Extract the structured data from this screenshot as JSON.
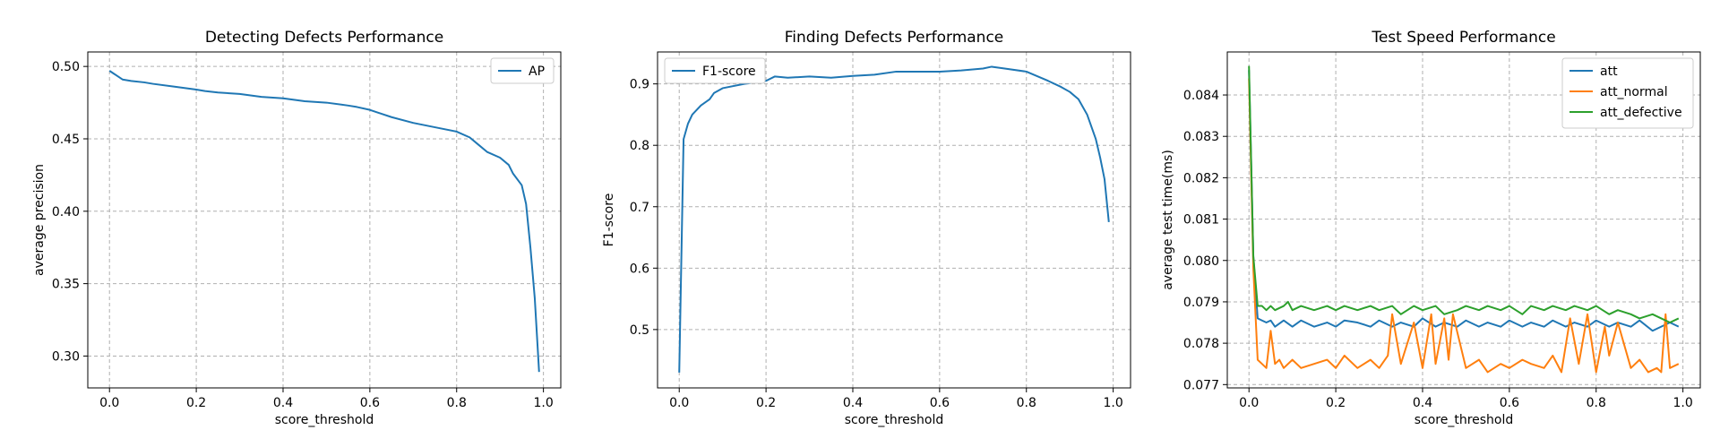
{
  "chart_data": [
    {
      "type": "line",
      "title": "Detecting Defects Performance",
      "xlabel": "score_threshold",
      "ylabel": "average precision",
      "xlim": [
        -0.05,
        1.04
      ],
      "ylim": [
        0.278,
        0.51
      ],
      "xticks": [
        0.0,
        0.2,
        0.4,
        0.6,
        0.8,
        1.0
      ],
      "xtick_labels": [
        "0.0",
        "0.2",
        "0.4",
        "0.6",
        "0.8",
        "1.0"
      ],
      "yticks": [
        0.3,
        0.35,
        0.4,
        0.45,
        0.5
      ],
      "ytick_labels": [
        "0.30",
        "0.35",
        "0.40",
        "0.45",
        "0.50"
      ],
      "grid": true,
      "legend": "top-right",
      "series": [
        {
          "name": "AP",
          "color": "#1f77b4",
          "x": [
            0.0,
            0.01,
            0.02,
            0.03,
            0.05,
            0.08,
            0.1,
            0.15,
            0.2,
            0.22,
            0.25,
            0.3,
            0.35,
            0.4,
            0.45,
            0.5,
            0.55,
            0.57,
            0.6,
            0.62,
            0.65,
            0.7,
            0.75,
            0.8,
            0.83,
            0.85,
            0.87,
            0.9,
            0.92,
            0.93,
            0.95,
            0.96,
            0.97,
            0.98,
            0.99
          ],
          "y": [
            0.497,
            0.495,
            0.493,
            0.491,
            0.49,
            0.489,
            0.488,
            0.486,
            0.484,
            0.483,
            0.482,
            0.481,
            0.479,
            0.478,
            0.476,
            0.475,
            0.473,
            0.472,
            0.47,
            0.468,
            0.465,
            0.461,
            0.458,
            0.455,
            0.451,
            0.446,
            0.441,
            0.437,
            0.432,
            0.426,
            0.418,
            0.405,
            0.375,
            0.34,
            0.289
          ]
        }
      ]
    },
    {
      "type": "line",
      "title": "Finding Defects Performance",
      "xlabel": "score_threshold",
      "ylabel": "F1-score",
      "xlim": [
        -0.05,
        1.04
      ],
      "ylim": [
        0.405,
        0.952
      ],
      "xticks": [
        0.0,
        0.2,
        0.4,
        0.6,
        0.8,
        1.0
      ],
      "xtick_labels": [
        "0.0",
        "0.2",
        "0.4",
        "0.6",
        "0.8",
        "1.0"
      ],
      "yticks": [
        0.5,
        0.6,
        0.7,
        0.8,
        0.9
      ],
      "ytick_labels": [
        "0.5",
        "0.6",
        "0.7",
        "0.8",
        "0.9"
      ],
      "grid": true,
      "legend": "top-left",
      "series": [
        {
          "name": "F1-score",
          "color": "#1f77b4",
          "x": [
            0.0,
            0.01,
            0.02,
            0.03,
            0.05,
            0.07,
            0.08,
            0.1,
            0.15,
            0.2,
            0.22,
            0.25,
            0.3,
            0.35,
            0.4,
            0.45,
            0.5,
            0.55,
            0.6,
            0.65,
            0.7,
            0.72,
            0.75,
            0.8,
            0.85,
            0.88,
            0.9,
            0.92,
            0.94,
            0.96,
            0.97,
            0.98,
            0.99
          ],
          "y": [
            0.43,
            0.81,
            0.835,
            0.85,
            0.865,
            0.875,
            0.885,
            0.893,
            0.9,
            0.905,
            0.912,
            0.91,
            0.912,
            0.91,
            0.913,
            0.915,
            0.92,
            0.92,
            0.92,
            0.922,
            0.925,
            0.928,
            0.925,
            0.92,
            0.905,
            0.895,
            0.887,
            0.875,
            0.85,
            0.81,
            0.78,
            0.745,
            0.675
          ]
        }
      ]
    },
    {
      "type": "line",
      "title": "Test Speed Performance",
      "xlabel": "score_threshold",
      "ylabel": "average test time(ms)",
      "xlim": [
        -0.05,
        1.04
      ],
      "ylim": [
        0.07692,
        0.08504
      ],
      "xticks": [
        0.0,
        0.2,
        0.4,
        0.6,
        0.8,
        1.0
      ],
      "xtick_labels": [
        "0.0",
        "0.2",
        "0.4",
        "0.6",
        "0.8",
        "1.0"
      ],
      "yticks": [
        0.077,
        0.078,
        0.079,
        0.08,
        0.081,
        0.082,
        0.083,
        0.084
      ],
      "ytick_labels": [
        "0.077",
        "0.078",
        "0.079",
        "0.080",
        "0.081",
        "0.082",
        "0.083",
        "0.084"
      ],
      "grid": true,
      "legend": "top-right",
      "series": [
        {
          "name": "att",
          "color": "#1f77b4",
          "x": [
            0.0,
            0.01,
            0.02,
            0.03,
            0.04,
            0.05,
            0.06,
            0.08,
            0.1,
            0.12,
            0.15,
            0.18,
            0.2,
            0.22,
            0.25,
            0.28,
            0.3,
            0.33,
            0.35,
            0.38,
            0.4,
            0.43,
            0.45,
            0.48,
            0.5,
            0.53,
            0.55,
            0.58,
            0.6,
            0.63,
            0.65,
            0.68,
            0.7,
            0.73,
            0.75,
            0.78,
            0.8,
            0.83,
            0.85,
            0.88,
            0.9,
            0.93,
            0.95,
            0.97,
            0.99
          ],
          "y": [
            0.0846,
            0.0801,
            0.0786,
            0.07855,
            0.0785,
            0.07855,
            0.0784,
            0.07855,
            0.0784,
            0.07855,
            0.0784,
            0.0785,
            0.0784,
            0.07855,
            0.0785,
            0.0784,
            0.07855,
            0.0784,
            0.0785,
            0.0784,
            0.0786,
            0.0784,
            0.0785,
            0.0784,
            0.07855,
            0.0784,
            0.0785,
            0.0784,
            0.07855,
            0.0784,
            0.0785,
            0.0784,
            0.07855,
            0.0784,
            0.0785,
            0.0784,
            0.07855,
            0.0784,
            0.0785,
            0.0784,
            0.07855,
            0.0783,
            0.0784,
            0.0785,
            0.0784
          ]
        },
        {
          "name": "att_normal",
          "color": "#ff7f0e",
          "x": [
            0.0,
            0.01,
            0.02,
            0.03,
            0.04,
            0.05,
            0.06,
            0.07,
            0.08,
            0.1,
            0.12,
            0.15,
            0.18,
            0.2,
            0.22,
            0.25,
            0.28,
            0.3,
            0.32,
            0.33,
            0.35,
            0.38,
            0.4,
            0.42,
            0.43,
            0.45,
            0.46,
            0.47,
            0.5,
            0.53,
            0.55,
            0.58,
            0.6,
            0.63,
            0.65,
            0.68,
            0.7,
            0.72,
            0.74,
            0.76,
            0.78,
            0.8,
            0.82,
            0.83,
            0.85,
            0.88,
            0.9,
            0.92,
            0.94,
            0.95,
            0.96,
            0.97,
            0.99
          ],
          "y": [
            0.0844,
            0.0798,
            0.0776,
            0.0775,
            0.0774,
            0.0783,
            0.0775,
            0.0776,
            0.0774,
            0.0776,
            0.0774,
            0.0775,
            0.0776,
            0.0774,
            0.0777,
            0.0774,
            0.0776,
            0.0774,
            0.0777,
            0.0787,
            0.0775,
            0.0785,
            0.0774,
            0.0787,
            0.0775,
            0.0786,
            0.0776,
            0.0787,
            0.0774,
            0.0776,
            0.0773,
            0.0775,
            0.0774,
            0.0776,
            0.0775,
            0.0774,
            0.0777,
            0.0773,
            0.0786,
            0.0775,
            0.0787,
            0.0773,
            0.0784,
            0.0777,
            0.0785,
            0.0774,
            0.0776,
            0.0773,
            0.0774,
            0.0773,
            0.0787,
            0.0774,
            0.0775
          ]
        },
        {
          "name": "att_defective",
          "color": "#2ca02c",
          "x": [
            0.0,
            0.01,
            0.02,
            0.03,
            0.04,
            0.05,
            0.06,
            0.08,
            0.09,
            0.1,
            0.12,
            0.15,
            0.18,
            0.2,
            0.22,
            0.25,
            0.28,
            0.3,
            0.33,
            0.35,
            0.38,
            0.4,
            0.43,
            0.45,
            0.48,
            0.5,
            0.53,
            0.55,
            0.58,
            0.6,
            0.63,
            0.65,
            0.68,
            0.7,
            0.73,
            0.75,
            0.78,
            0.8,
            0.83,
            0.85,
            0.88,
            0.9,
            0.93,
            0.95,
            0.97,
            0.99
          ],
          "y": [
            0.0847,
            0.0801,
            0.0789,
            0.0789,
            0.0788,
            0.0789,
            0.0788,
            0.0789,
            0.079,
            0.0788,
            0.0789,
            0.0788,
            0.0789,
            0.0788,
            0.0789,
            0.0788,
            0.0789,
            0.0788,
            0.0789,
            0.0787,
            0.0789,
            0.0788,
            0.0789,
            0.0787,
            0.0788,
            0.0789,
            0.0788,
            0.0789,
            0.0788,
            0.0789,
            0.0787,
            0.0789,
            0.0788,
            0.0789,
            0.0788,
            0.0789,
            0.0788,
            0.0789,
            0.0787,
            0.0788,
            0.0787,
            0.0786,
            0.0787,
            0.0786,
            0.0785,
            0.0786
          ]
        }
      ]
    }
  ]
}
